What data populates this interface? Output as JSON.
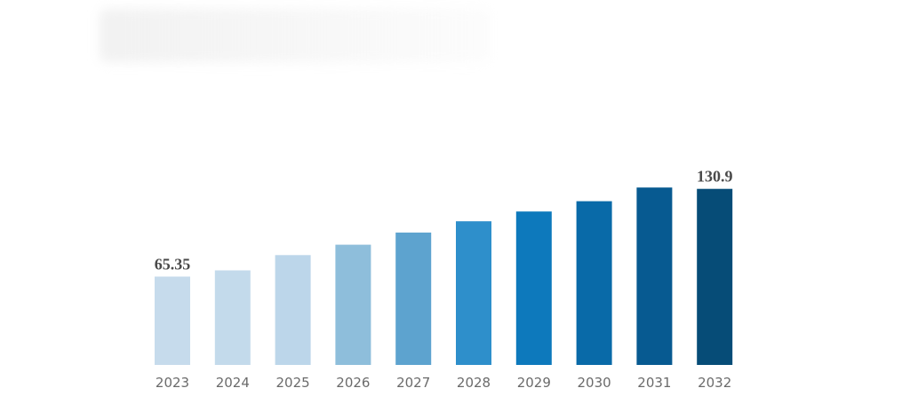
{
  "chart_data": {
    "type": "bar",
    "categories": [
      "2023",
      "2024",
      "2025",
      "2026",
      "2027",
      "2028",
      "2029",
      "2030",
      "2031",
      "2032"
    ],
    "values": [
      65.35,
      70.0,
      81.4,
      89.2,
      98.3,
      106.7,
      114.0,
      121.7,
      131.9,
      130.9
    ],
    "value_labels": [
      "65.35",
      "",
      "",
      "",
      "",
      "",
      "",
      "",
      "",
      "130.9"
    ],
    "colors": [
      "#c6dbec",
      "#c3daeb",
      "#bcd6ea",
      "#8ebedb",
      "#5da3cf",
      "#2e8fcb",
      "#0d79bc",
      "#096aa8",
      "#075a91",
      "#064c77"
    ],
    "legend": "none",
    "grid": false
  }
}
